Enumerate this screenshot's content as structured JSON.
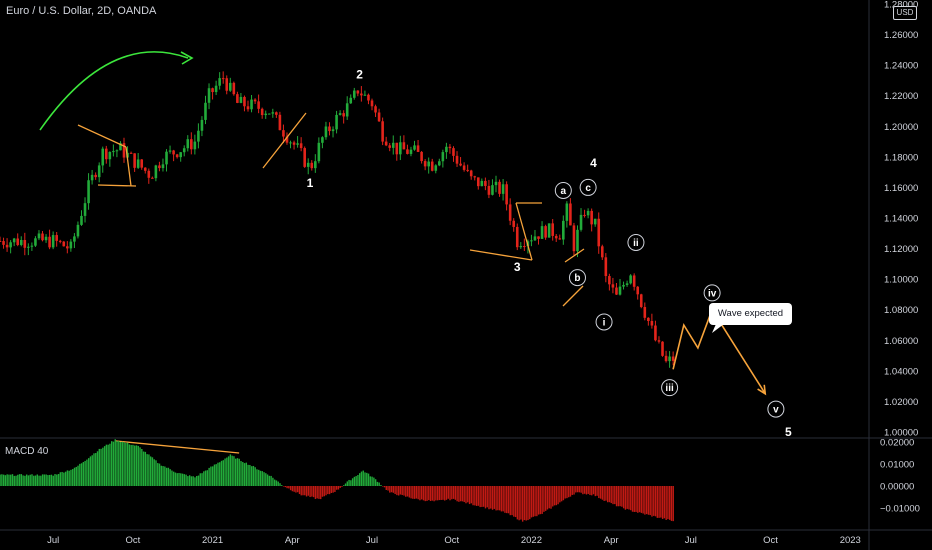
{
  "header": {
    "title": "Euro / U.S. Dollar, 2D, OANDA",
    "currency": "USD"
  },
  "macd": {
    "title": "MACD 40"
  },
  "callout": {
    "text": "Wave expected"
  },
  "colors": {
    "up": "#22ab3a",
    "down": "#e3241b",
    "pattern": "#f6a33b",
    "arrow": "#3ce63c",
    "macd_pos": "#22ab3a",
    "macd_neg": "#c21a14"
  },
  "chart_data": [
    {
      "type": "candlestick",
      "title": "Euro / U.S. Dollar, 2D, OANDA",
      "ylim": [
        1.0,
        1.28
      ],
      "y_ticks": [
        "1.28000",
        "1.26000",
        "1.24000",
        "1.22000",
        "1.20000",
        "1.18000",
        "1.16000",
        "1.14000",
        "1.12000",
        "1.10000",
        "1.08000",
        "1.06000",
        "1.04000",
        "1.02000",
        "1.00000"
      ],
      "x_ticks": [
        "Jul",
        "Oct",
        "2021",
        "Apr",
        "Jul",
        "Oct",
        "2022",
        "Apr",
        "Jul",
        "Oct",
        "2023"
      ],
      "x_tick_index": [
        0,
        45,
        90,
        135,
        180,
        225,
        270,
        315,
        360,
        405,
        450
      ],
      "price_path": [
        {
          "i": 0,
          "v": 1.125
        },
        {
          "i": 10,
          "v": 1.12
        },
        {
          "i": 20,
          "v": 1.16
        },
        {
          "i": 28,
          "v": 1.183
        },
        {
          "i": 38,
          "v": 1.185
        },
        {
          "i": 48,
          "v": 1.175
        },
        {
          "i": 55,
          "v": 1.168
        },
        {
          "i": 62,
          "v": 1.18
        },
        {
          "i": 72,
          "v": 1.185
        },
        {
          "i": 80,
          "v": 1.19
        },
        {
          "i": 88,
          "v": 1.22
        },
        {
          "i": 96,
          "v": 1.232
        },
        {
          "i": 104,
          "v": 1.215
        },
        {
          "i": 114,
          "v": 1.213
        },
        {
          "i": 122,
          "v": 1.21
        },
        {
          "i": 130,
          "v": 1.197
        },
        {
          "i": 138,
          "v": 1.185
        },
        {
          "i": 145,
          "v": 1.172
        },
        {
          "i": 152,
          "v": 1.192
        },
        {
          "i": 160,
          "v": 1.205
        },
        {
          "i": 168,
          "v": 1.215
        },
        {
          "i": 172,
          "v": 1.224
        },
        {
          "i": 180,
          "v": 1.215
        },
        {
          "i": 186,
          "v": 1.195
        },
        {
          "i": 194,
          "v": 1.185
        },
        {
          "i": 204,
          "v": 1.183
        },
        {
          "i": 214,
          "v": 1.175
        },
        {
          "i": 222,
          "v": 1.187
        },
        {
          "i": 228,
          "v": 1.178
        },
        {
          "i": 236,
          "v": 1.165
        },
        {
          "i": 246,
          "v": 1.16
        },
        {
          "i": 254,
          "v": 1.158
        },
        {
          "i": 262,
          "v": 1.125
        },
        {
          "i": 270,
          "v": 1.128
        },
        {
          "i": 278,
          "v": 1.132
        },
        {
          "i": 286,
          "v": 1.13
        },
        {
          "i": 290,
          "v": 1.145
        },
        {
          "i": 294,
          "v": 1.122
        },
        {
          "i": 300,
          "v": 1.145
        },
        {
          "i": 306,
          "v": 1.135
        },
        {
          "i": 312,
          "v": 1.1
        },
        {
          "i": 318,
          "v": 1.088
        },
        {
          "i": 326,
          "v": 1.105
        },
        {
          "i": 332,
          "v": 1.085
        },
        {
          "i": 340,
          "v": 1.06
        },
        {
          "i": 346,
          "v": 1.045
        },
        {
          "i": 350,
          "v": 1.048
        }
      ],
      "projection": [
        {
          "i": 350,
          "v": 1.041
        },
        {
          "i": 356,
          "v": 1.07
        },
        {
          "i": 364,
          "v": 1.055
        },
        {
          "i": 372,
          "v": 1.08
        },
        {
          "i": 402,
          "v": 1.025
        }
      ],
      "wave_labels": [
        {
          "text": "1",
          "i": 145,
          "v": 1.163,
          "circled": false
        },
        {
          "text": "2",
          "i": 173,
          "v": 1.234,
          "circled": false
        },
        {
          "text": "3",
          "i": 262,
          "v": 1.108,
          "circled": false
        },
        {
          "text": "4",
          "i": 305,
          "v": 1.176,
          "circled": false
        },
        {
          "text": "5",
          "i": 415,
          "v": 1.0,
          "circled": false
        },
        {
          "text": "a",
          "i": 288,
          "v": 1.158,
          "circled": true
        },
        {
          "text": "b",
          "i": 296,
          "v": 1.101,
          "circled": true
        },
        {
          "text": "c",
          "i": 302,
          "v": 1.16,
          "circled": true
        },
        {
          "text": "i",
          "i": 311,
          "v": 1.072,
          "circled": true
        },
        {
          "text": "ii",
          "i": 329,
          "v": 1.124,
          "circled": true
        },
        {
          "text": "iii",
          "i": 348,
          "v": 1.029,
          "circled": true
        },
        {
          "text": "iv",
          "i": 372,
          "v": 1.091,
          "circled": true
        },
        {
          "text": "v",
          "i": 408,
          "v": 1.015,
          "circled": true
        }
      ]
    },
    {
      "type": "bar",
      "title": "MACD 40",
      "ylim": [
        -0.0165,
        0.0215
      ],
      "y_ticks": [
        "0.02000",
        "0.01000",
        "0.00000",
        "−0.01000"
      ],
      "hist_path": [
        {
          "i": 0,
          "v": 0.005
        },
        {
          "i": 12,
          "v": 0.008
        },
        {
          "i": 25,
          "v": 0.016
        },
        {
          "i": 35,
          "v": 0.021
        },
        {
          "i": 48,
          "v": 0.018
        },
        {
          "i": 60,
          "v": 0.01
        },
        {
          "i": 70,
          "v": 0.006
        },
        {
          "i": 80,
          "v": 0.004
        },
        {
          "i": 90,
          "v": 0.009
        },
        {
          "i": 100,
          "v": 0.014
        },
        {
          "i": 110,
          "v": 0.01
        },
        {
          "i": 122,
          "v": 0.005
        },
        {
          "i": 130,
          "v": 0.0
        },
        {
          "i": 140,
          "v": -0.004
        },
        {
          "i": 150,
          "v": -0.006
        },
        {
          "i": 160,
          "v": -0.002
        },
        {
          "i": 168,
          "v": 0.003
        },
        {
          "i": 175,
          "v": 0.007
        },
        {
          "i": 182,
          "v": 0.003
        },
        {
          "i": 190,
          "v": -0.003
        },
        {
          "i": 205,
          "v": -0.006
        },
        {
          "i": 215,
          "v": -0.007
        },
        {
          "i": 225,
          "v": -0.006
        },
        {
          "i": 240,
          "v": -0.009
        },
        {
          "i": 255,
          "v": -0.012
        },
        {
          "i": 265,
          "v": -0.016
        },
        {
          "i": 275,
          "v": -0.013
        },
        {
          "i": 285,
          "v": -0.008
        },
        {
          "i": 295,
          "v": -0.003
        },
        {
          "i": 305,
          "v": -0.004
        },
        {
          "i": 315,
          "v": -0.008
        },
        {
          "i": 325,
          "v": -0.011
        },
        {
          "i": 335,
          "v": -0.013
        },
        {
          "i": 345,
          "v": -0.015
        },
        {
          "i": 350,
          "v": -0.016
        }
      ],
      "divergence_line": [
        {
          "i": 35,
          "v": 0.0205
        },
        {
          "i": 105,
          "v": 0.015
        }
      ]
    }
  ]
}
